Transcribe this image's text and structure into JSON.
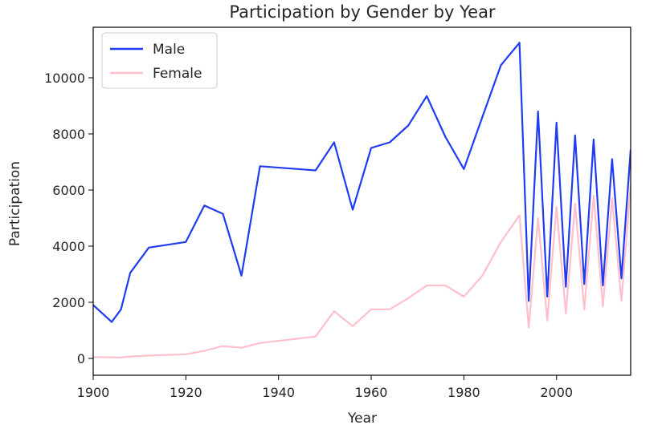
{
  "chart_data": {
    "type": "line",
    "title": "Participation by Gender by Year",
    "xlabel": "Year",
    "ylabel": "Participation",
    "xlim": [
      1900,
      2016
    ],
    "ylim": [
      -600,
      11800
    ],
    "xticks": [
      1900,
      1920,
      1940,
      1960,
      1980,
      2000
    ],
    "yticks": [
      0,
      2000,
      4000,
      6000,
      8000,
      10000
    ],
    "grid": false,
    "legend_position": "upper-left",
    "series": [
      {
        "name": "Male",
        "color": "#1f3cf0",
        "points": [
          [
            1900,
            1900
          ],
          [
            1904,
            1300
          ],
          [
            1906,
            1750
          ],
          [
            1908,
            3050
          ],
          [
            1912,
            3950
          ],
          [
            1920,
            4150
          ],
          [
            1924,
            5450
          ],
          [
            1928,
            5150
          ],
          [
            1932,
            2950
          ],
          [
            1936,
            6850
          ],
          [
            1948,
            6700
          ],
          [
            1952,
            7700
          ],
          [
            1956,
            5300
          ],
          [
            1960,
            7500
          ],
          [
            1964,
            7700
          ],
          [
            1968,
            8300
          ],
          [
            1972,
            9350
          ],
          [
            1976,
            7900
          ],
          [
            1980,
            6750
          ],
          [
            1984,
            8600
          ],
          [
            1988,
            10450
          ],
          [
            1992,
            11250
          ],
          [
            1994,
            2050
          ],
          [
            1996,
            8800
          ],
          [
            1998,
            2200
          ],
          [
            2000,
            8400
          ],
          [
            2002,
            2550
          ],
          [
            2004,
            7950
          ],
          [
            2006,
            2650
          ],
          [
            2008,
            7800
          ],
          [
            2010,
            2600
          ],
          [
            2012,
            7100
          ],
          [
            2014,
            2850
          ],
          [
            2016,
            7450
          ]
        ]
      },
      {
        "name": "Female",
        "color": "#ffc0cb",
        "points": [
          [
            1900,
            50
          ],
          [
            1904,
            40
          ],
          [
            1906,
            30
          ],
          [
            1908,
            70
          ],
          [
            1912,
            100
          ],
          [
            1920,
            150
          ],
          [
            1924,
            270
          ],
          [
            1928,
            440
          ],
          [
            1932,
            380
          ],
          [
            1936,
            550
          ],
          [
            1948,
            780
          ],
          [
            1952,
            1680
          ],
          [
            1956,
            1150
          ],
          [
            1960,
            1750
          ],
          [
            1964,
            1750
          ],
          [
            1968,
            2150
          ],
          [
            1972,
            2600
          ],
          [
            1976,
            2600
          ],
          [
            1980,
            2200
          ],
          [
            1984,
            2950
          ],
          [
            1988,
            4150
          ],
          [
            1992,
            5100
          ],
          [
            1994,
            1100
          ],
          [
            1996,
            5000
          ],
          [
            1998,
            1350
          ],
          [
            2000,
            5400
          ],
          [
            2002,
            1600
          ],
          [
            2004,
            5500
          ],
          [
            2006,
            1750
          ],
          [
            2008,
            5800
          ],
          [
            2010,
            1850
          ],
          [
            2012,
            5700
          ],
          [
            2014,
            2050
          ],
          [
            2016,
            6200
          ]
        ]
      }
    ]
  }
}
